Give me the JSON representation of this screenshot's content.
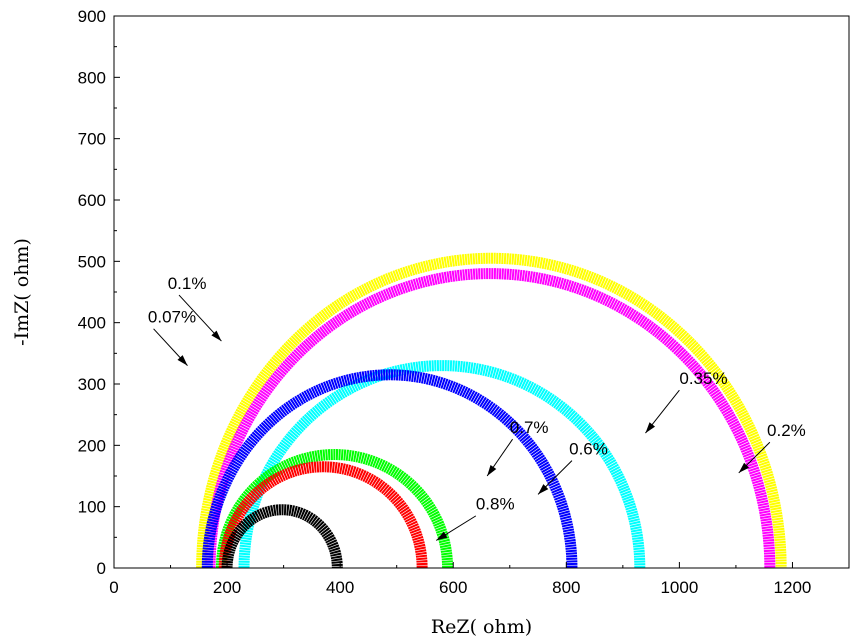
{
  "chart_data": {
    "type": "scatter",
    "title": "",
    "xlabel": "ReZ( ohm)",
    "ylabel": "-ImZ( ohm)",
    "xlim": [
      0,
      1300
    ],
    "ylim": [
      0,
      900
    ],
    "xticks": [
      "0",
      "200",
      "400",
      "600",
      "800",
      "1000",
      "1200"
    ],
    "xtick_values": [
      0,
      200,
      400,
      600,
      800,
      1000,
      1200
    ],
    "yticks": [
      "0",
      "100",
      "200",
      "300",
      "400",
      "500",
      "600",
      "700",
      "800",
      "900"
    ],
    "ytick_values": [
      0,
      100,
      200,
      300,
      400,
      500,
      600,
      700,
      800,
      900
    ],
    "grid": false,
    "series": [
      {
        "name": "0.07%",
        "color": "#ffff00",
        "x_start": 155,
        "x_end": 1180,
        "peak": 505
      },
      {
        "name": "0.1%",
        "color": "#ff00ff",
        "x_start": 170,
        "x_end": 1160,
        "peak": 480
      },
      {
        "name": "0.2%",
        "color": "#00ffff",
        "x_start": 230,
        "x_end": 930,
        "peak": 330
      },
      {
        "name": "0.35%",
        "color": "#0000ff",
        "x_start": 165,
        "x_end": 810,
        "peak": 315
      },
      {
        "name": "0.6%",
        "color": "#00ff00",
        "x_start": 190,
        "x_end": 590,
        "peak": 185
      },
      {
        "name": "0.7%",
        "color": "#ff0000",
        "x_start": 195,
        "x_end": 545,
        "peak": 165
      },
      {
        "name": "0.8%",
        "color": "#000000",
        "x_start": 200,
        "x_end": 395,
        "peak": 95
      }
    ],
    "annotations": [
      {
        "text": "0.07%",
        "label_x": 60,
        "label_y": 400,
        "arrow_x": 70,
        "arrow_y": 390,
        "tip_x": 130,
        "tip_y": 330
      },
      {
        "text": "0.1%",
        "label_x": 95,
        "label_y": 455,
        "arrow_x": 115,
        "arrow_y": 445,
        "tip_x": 190,
        "tip_y": 370
      },
      {
        "text": "0.35%",
        "label_x": 1000,
        "label_y": 300,
        "arrow_x": 1000,
        "arrow_y": 290,
        "tip_x": 940,
        "tip_y": 220
      },
      {
        "text": "0.2%",
        "label_x": 1155,
        "label_y": 215,
        "arrow_x": 1160,
        "arrow_y": 205,
        "tip_x": 1105,
        "tip_y": 155
      },
      {
        "text": "0.7%",
        "label_x": 700,
        "label_y": 220,
        "arrow_x": 705,
        "arrow_y": 210,
        "tip_x": 660,
        "tip_y": 150
      },
      {
        "text": "0.6%",
        "label_x": 805,
        "label_y": 185,
        "arrow_x": 810,
        "arrow_y": 175,
        "tip_x": 750,
        "tip_y": 120
      },
      {
        "text": "0.8%",
        "label_x": 640,
        "label_y": 95,
        "arrow_x": 640,
        "arrow_y": 85,
        "tip_x": 570,
        "tip_y": 45
      }
    ]
  }
}
